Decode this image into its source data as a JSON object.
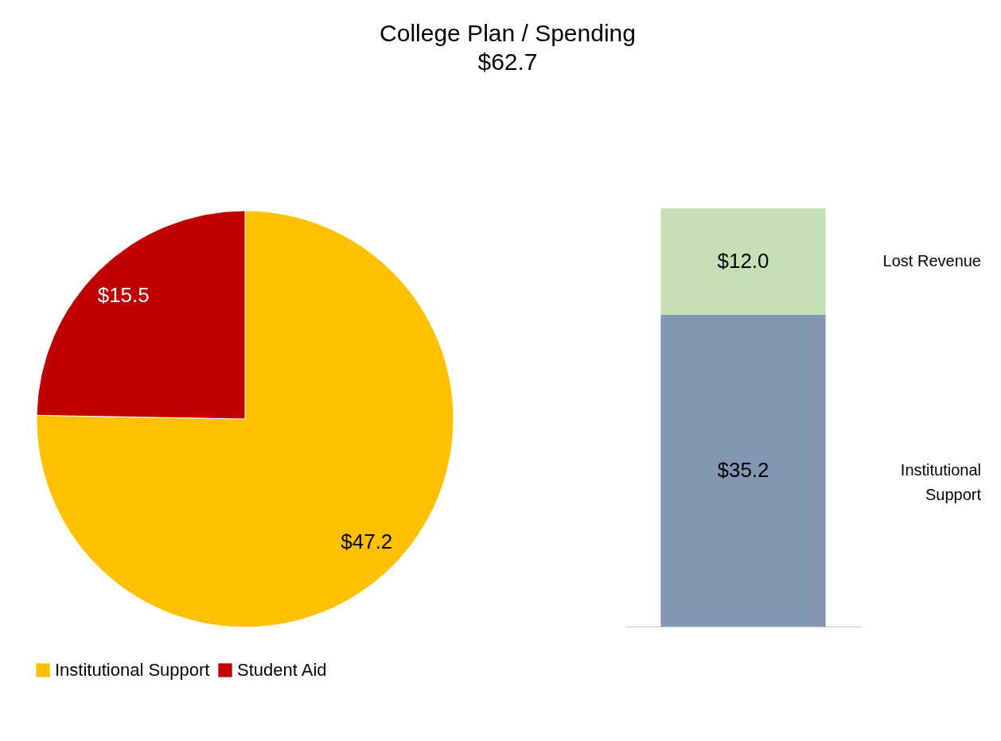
{
  "chart_data": [
    {
      "type": "pie",
      "title": "College Plan / Spending",
      "subtitle": "$62.7",
      "categories": [
        "Institutional Support",
        "Student Aid"
      ],
      "values": [
        47.2,
        15.5
      ],
      "colors": [
        "#ffc000",
        "#c00000"
      ],
      "value_labels": [
        "$47.2",
        "$15.5"
      ],
      "legend": "bottom left"
    },
    {
      "type": "bar",
      "stacked": true,
      "categories": [
        null
      ],
      "series": [
        {
          "name": "Institutional Support",
          "color": "#8497b0",
          "values": [
            35.2
          ],
          "value_labels": [
            "$35.2"
          ]
        },
        {
          "name": "Lost Revenue",
          "color": "#c5e0b4",
          "values": [
            12.0
          ],
          "value_labels": [
            "$12.0"
          ]
        }
      ],
      "ylim": [
        0,
        47.2
      ]
    }
  ]
}
